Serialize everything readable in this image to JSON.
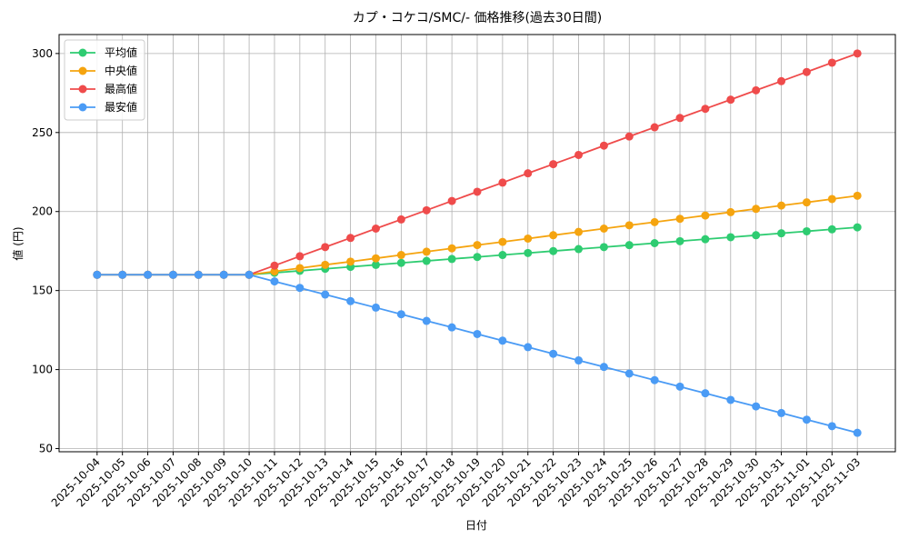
{
  "chart_data": {
    "type": "line",
    "title": "カプ・コケコ/SMC/- 価格推移(過去30日間)",
    "x_label": "日付",
    "y_label": "値 (円)",
    "categories": [
      "2025-10-04",
      "2025-10-05",
      "2025-10-06",
      "2025-10-07",
      "2025-10-08",
      "2025-10-09",
      "2025-10-10",
      "2025-10-11",
      "2025-10-12",
      "2025-10-13",
      "2025-10-14",
      "2025-10-15",
      "2025-10-16",
      "2025-10-17",
      "2025-10-18",
      "2025-10-19",
      "2025-10-20",
      "2025-10-21",
      "2025-10-22",
      "2025-10-23",
      "2025-10-24",
      "2025-10-25",
      "2025-10-26",
      "2025-10-27",
      "2025-10-28",
      "2025-10-29",
      "2025-10-30",
      "2025-10-31",
      "2025-11-01",
      "2025-11-02",
      "2025-11-03"
    ],
    "series": [
      {
        "name": "平均値",
        "color": "#2ecc71",
        "values": [
          160,
          160,
          160,
          160,
          160,
          160,
          160,
          161.25,
          162.5,
          163.75,
          165,
          166.25,
          167.5,
          168.75,
          170,
          171.25,
          172.5,
          173.75,
          175,
          176.25,
          177.5,
          178.75,
          180,
          181.25,
          182.5,
          183.75,
          185,
          186.25,
          187.5,
          188.75,
          190
        ]
      },
      {
        "name": "中央値",
        "color": "#f5a40f",
        "values": [
          160,
          160,
          160,
          160,
          160,
          160,
          160,
          162.1,
          164.2,
          166.3,
          168.3,
          170.4,
          172.5,
          174.6,
          176.7,
          178.8,
          180.8,
          182.9,
          185,
          187.1,
          189.2,
          191.3,
          193.3,
          195.4,
          197.5,
          199.6,
          201.7,
          203.8,
          205.8,
          207.9,
          210
        ]
      },
      {
        "name": "最高値",
        "color": "#ef4b4b",
        "values": [
          160,
          160,
          160,
          160,
          160,
          160,
          160,
          165.8,
          171.7,
          177.5,
          183.3,
          189.2,
          195,
          200.8,
          206.7,
          212.5,
          218.3,
          224.2,
          230,
          235.8,
          241.7,
          247.5,
          253.3,
          259.2,
          265,
          270.8,
          276.7,
          282.5,
          288.3,
          294.2,
          300
        ]
      },
      {
        "name": "最安値",
        "color": "#4a9bf5",
        "values": [
          160,
          160,
          160,
          160,
          160,
          160,
          160,
          155.8,
          151.7,
          147.5,
          143.3,
          139.2,
          135,
          130.8,
          126.7,
          122.5,
          118.3,
          114.2,
          110,
          105.8,
          101.7,
          97.5,
          93.3,
          89.2,
          85,
          80.8,
          76.7,
          72.5,
          68.3,
          64.2,
          60
        ]
      }
    ],
    "ylim": [
      48,
      312
    ],
    "yticks": [
      50,
      100,
      150,
      200,
      250,
      300
    ],
    "grid": true,
    "legend": "upper left"
  }
}
